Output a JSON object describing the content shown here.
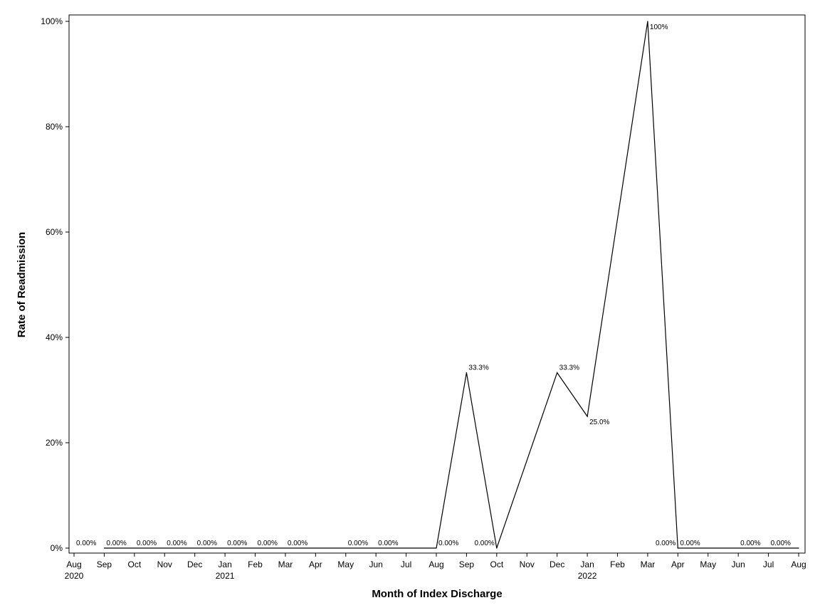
{
  "chart_data": {
    "type": "line",
    "title": "",
    "xlabel": "Month of Index Discharge",
    "ylabel": "Rate of Readmission",
    "x_axis_ticks": [
      {
        "month": "Aug",
        "year": "2020"
      },
      {
        "month": "Sep",
        "year": ""
      },
      {
        "month": "Oct",
        "year": ""
      },
      {
        "month": "Nov",
        "year": ""
      },
      {
        "month": "Dec",
        "year": ""
      },
      {
        "month": "Jan",
        "year": "2021"
      },
      {
        "month": "Feb",
        "year": ""
      },
      {
        "month": "Mar",
        "year": ""
      },
      {
        "month": "Apr",
        "year": ""
      },
      {
        "month": "May",
        "year": ""
      },
      {
        "month": "Jun",
        "year": ""
      },
      {
        "month": "Jul",
        "year": ""
      },
      {
        "month": "Aug",
        "year": ""
      },
      {
        "month": "Sep",
        "year": ""
      },
      {
        "month": "Oct",
        "year": ""
      },
      {
        "month": "Nov",
        "year": ""
      },
      {
        "month": "Dec",
        "year": ""
      },
      {
        "month": "Jan",
        "year": "2022"
      },
      {
        "month": "Feb",
        "year": ""
      },
      {
        "month": "Mar",
        "year": ""
      },
      {
        "month": "Apr",
        "year": ""
      },
      {
        "month": "May",
        "year": ""
      },
      {
        "month": "Jun",
        "year": ""
      },
      {
        "month": "Jul",
        "year": ""
      },
      {
        "month": "Aug",
        "year": ""
      }
    ],
    "y_ticks": [
      {
        "value": 0,
        "label": "0%"
      },
      {
        "value": 20,
        "label": "20%"
      },
      {
        "value": 40,
        "label": "40%"
      },
      {
        "value": 60,
        "label": "60%"
      },
      {
        "value": 80,
        "label": "80%"
      },
      {
        "value": 100,
        "label": "100%"
      }
    ],
    "ylim": [
      0,
      100
    ],
    "xlim": [
      "2020-08",
      "2022-08"
    ],
    "grid": false,
    "series": [
      {
        "points": [
          {
            "x": "2020-09",
            "y": 0
          },
          {
            "x": "2021-08",
            "y": 0
          },
          {
            "x": "2021-09",
            "y": 33.3
          },
          {
            "x": "2021-10",
            "y": 0
          },
          {
            "x": "2021-12",
            "y": 33.3
          },
          {
            "x": "2022-01",
            "y": 25.0
          },
          {
            "x": "2022-03",
            "y": 100
          },
          {
            "x": "2022-04",
            "y": 0
          },
          {
            "x": "2022-08",
            "y": 0
          }
        ]
      }
    ],
    "data_labels": [
      {
        "x": "2020-08",
        "y": 0,
        "text": "0.00%",
        "pos": "above-right"
      },
      {
        "x": "2020-09",
        "y": 0,
        "text": "0.00%",
        "pos": "above-right"
      },
      {
        "x": "2020-10",
        "y": 0,
        "text": "0.00%",
        "pos": "above-right"
      },
      {
        "x": "2020-11",
        "y": 0,
        "text": "0.00%",
        "pos": "above-right"
      },
      {
        "x": "2020-12",
        "y": 0,
        "text": "0.00%",
        "pos": "above-right"
      },
      {
        "x": "2021-01",
        "y": 0,
        "text": "0.00%",
        "pos": "above-right"
      },
      {
        "x": "2021-02",
        "y": 0,
        "text": "0.00%",
        "pos": "above-right"
      },
      {
        "x": "2021-03",
        "y": 0,
        "text": "0.00%",
        "pos": "above-right"
      },
      {
        "x": "2021-05",
        "y": 0,
        "text": "0.00%",
        "pos": "above-right"
      },
      {
        "x": "2021-06",
        "y": 0,
        "text": "0.00%",
        "pos": "above-right"
      },
      {
        "x": "2021-08",
        "y": 0,
        "text": "0.00%",
        "pos": "above-right"
      },
      {
        "x": "2021-09",
        "y": 33.3,
        "text": "33.3%",
        "pos": "above-right"
      },
      {
        "x": "2021-10",
        "y": 0,
        "text": "0.00%",
        "pos": "above-left"
      },
      {
        "x": "2021-12",
        "y": 33.3,
        "text": "33.3%",
        "pos": "above-right"
      },
      {
        "x": "2022-01",
        "y": 25.0,
        "text": "25.0%",
        "pos": "right"
      },
      {
        "x": "2022-03",
        "y": 100,
        "text": "100%",
        "pos": "right"
      },
      {
        "x": "2022-04",
        "y": 0,
        "text": "0.00%",
        "pos": "above-left"
      },
      {
        "x": "2022-04",
        "y": 0,
        "text": "0.00%",
        "pos": "above-right"
      },
      {
        "x": "2022-06",
        "y": 0,
        "text": "0.00%",
        "pos": "above-right"
      },
      {
        "x": "2022-07",
        "y": 0,
        "text": "0.00%",
        "pos": "above-right"
      }
    ]
  }
}
